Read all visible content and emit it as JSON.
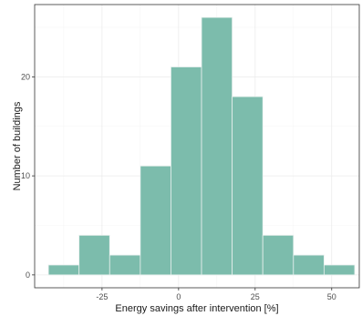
{
  "chart_data": {
    "type": "bar",
    "subtype": "histogram",
    "bins": [
      {
        "x0": -42.5,
        "x1": -32.5,
        "count": 1
      },
      {
        "x0": -32.5,
        "x1": -22.5,
        "count": 4
      },
      {
        "x0": -22.5,
        "x1": -12.5,
        "count": 2
      },
      {
        "x0": -12.5,
        "x1": -2.5,
        "count": 11
      },
      {
        "x0": -2.5,
        "x1": 7.5,
        "count": 21
      },
      {
        "x0": 7.5,
        "x1": 17.5,
        "count": 26
      },
      {
        "x0": 17.5,
        "x1": 27.5,
        "count": 18
      },
      {
        "x0": 27.5,
        "x1": 37.5,
        "count": 4
      },
      {
        "x0": 37.5,
        "x1": 47.5,
        "count": 2
      },
      {
        "x0": 47.5,
        "x1": 57.5,
        "count": 1
      }
    ],
    "xlabel": "Energy savings after intervention [%]",
    "ylabel": "Number of buildings",
    "xlim": [
      -47,
      59
    ],
    "ylim": [
      -1.3,
      27.3
    ],
    "xticks": [
      -25,
      0,
      25,
      50
    ],
    "yticks": [
      0,
      10,
      20
    ],
    "bar_color": "#7cbcac",
    "grid": true,
    "panel_border": true,
    "legend": "none"
  }
}
